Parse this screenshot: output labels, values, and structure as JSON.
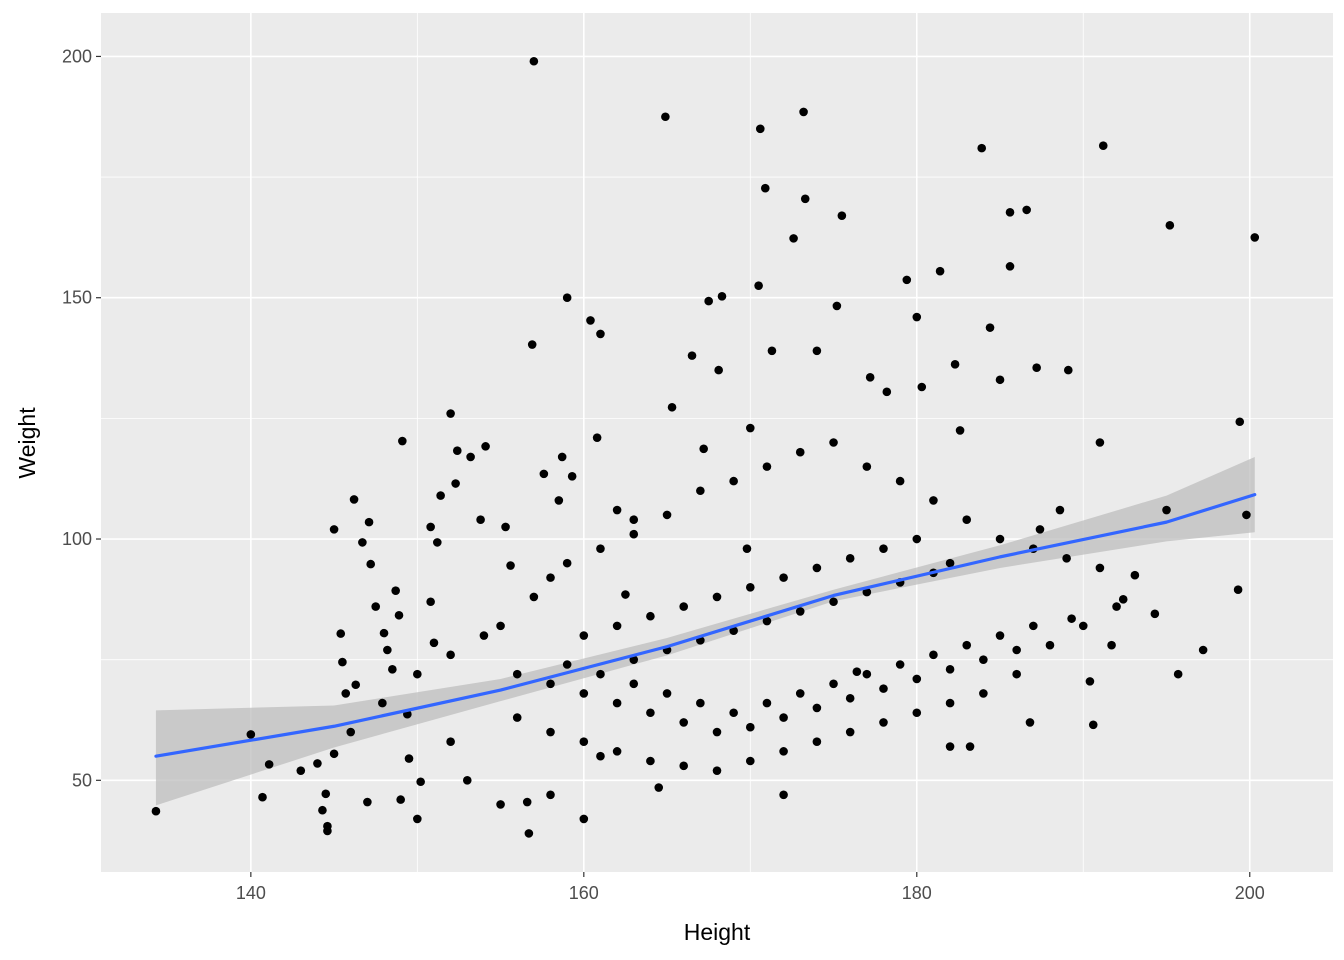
{
  "chart_data": {
    "type": "scatter",
    "xlabel": "Height",
    "ylabel": "Weight",
    "xlim": [
      131,
      205
    ],
    "ylim": [
      31,
      209
    ],
    "xticks": [
      140,
      160,
      180,
      200
    ],
    "xtick_labels": [
      "140",
      "160",
      "180",
      "200"
    ],
    "yticks": [
      50,
      100,
      150,
      200
    ],
    "ytick_labels": [
      "50",
      "100",
      "150",
      "200"
    ],
    "grid": true,
    "panel_background": "#ebebeb",
    "grid_color": "#ffffff",
    "point_color": "#000000",
    "fit_line_color": "#3366ff",
    "ribbon_color": "#bdbdbd",
    "series": [
      {
        "type": "scatter",
        "points": [
          [
            134.3,
            43.6
          ],
          [
            140,
            59.5
          ],
          [
            140.7,
            46.5
          ],
          [
            141.1,
            53.3
          ],
          [
            143,
            52
          ],
          [
            144,
            53.5
          ],
          [
            144.3,
            43.8
          ],
          [
            144.5,
            47.2
          ],
          [
            144.6,
            40.5
          ],
          [
            144.6,
            39.5
          ],
          [
            145,
            55.5
          ],
          [
            145,
            102
          ],
          [
            145.4,
            80.4
          ],
          [
            145.5,
            74.5
          ],
          [
            145.7,
            68
          ],
          [
            146.3,
            69.8
          ],
          [
            146.2,
            108.2
          ],
          [
            146.7,
            99.3
          ],
          [
            147.2,
            94.8
          ],
          [
            147.1,
            103.5
          ],
          [
            147.5,
            86
          ],
          [
            147.9,
            66
          ],
          [
            148,
            80.5
          ],
          [
            148.5,
            73
          ],
          [
            148.2,
            77
          ],
          [
            148.7,
            89.3
          ],
          [
            148.9,
            84.2
          ],
          [
            149.1,
            120.3
          ],
          [
            149.4,
            63.7
          ],
          [
            149.5,
            54.5
          ],
          [
            150.2,
            49.7
          ],
          [
            150.8,
            87
          ],
          [
            150.8,
            102.5
          ],
          [
            151.2,
            99.3
          ],
          [
            151,
            78.5
          ],
          [
            151.4,
            109
          ],
          [
            152,
            126
          ],
          [
            152.4,
            118.3
          ],
          [
            152.3,
            111.5
          ],
          [
            153.2,
            117
          ],
          [
            153.8,
            104
          ],
          [
            154.1,
            119.2
          ],
          [
            155.3,
            102.5
          ],
          [
            155.6,
            94.5
          ],
          [
            156.6,
            45.5
          ],
          [
            156.7,
            39
          ],
          [
            156.9,
            140.3
          ],
          [
            157,
            199
          ],
          [
            157.6,
            113.5
          ],
          [
            158.5,
            108
          ],
          [
            158.7,
            117
          ],
          [
            159,
            150
          ],
          [
            159.3,
            113
          ],
          [
            160.4,
            145.3
          ],
          [
            160.8,
            121
          ],
          [
            161,
            142.5
          ],
          [
            162,
            106
          ],
          [
            162.5,
            88.5
          ],
          [
            163,
            104
          ],
          [
            164.5,
            48.5
          ],
          [
            164.9,
            187.5
          ],
          [
            165.3,
            127.3
          ],
          [
            166.5,
            138
          ],
          [
            167.2,
            118.7
          ],
          [
            167.5,
            149.3
          ],
          [
            168.1,
            135
          ],
          [
            168.3,
            150.3
          ],
          [
            169.8,
            98
          ],
          [
            170,
            123
          ],
          [
            170.5,
            152.5
          ],
          [
            170.6,
            185
          ],
          [
            170.9,
            172.7
          ],
          [
            171.3,
            139
          ],
          [
            172,
            47
          ],
          [
            172.6,
            162.3
          ],
          [
            173.2,
            188.5
          ],
          [
            173.3,
            170.5
          ],
          [
            174,
            139
          ],
          [
            175.5,
            167
          ],
          [
            175.2,
            148.3
          ],
          [
            176.4,
            72.5
          ],
          [
            177.2,
            133.5
          ],
          [
            178.2,
            130.5
          ],
          [
            179.4,
            153.7
          ],
          [
            180,
            146
          ],
          [
            180.3,
            131.5
          ],
          [
            181.4,
            155.5
          ],
          [
            182,
            57
          ],
          [
            182.3,
            136.2
          ],
          [
            182.6,
            122.5
          ],
          [
            183.2,
            57
          ],
          [
            183.9,
            181
          ],
          [
            184.4,
            143.8
          ],
          [
            185,
            133
          ],
          [
            185.6,
            156.5
          ],
          [
            185.6,
            167.7
          ],
          [
            186.6,
            168.2
          ],
          [
            186.8,
            62
          ],
          [
            187.2,
            135.5
          ],
          [
            187.4,
            102
          ],
          [
            188.6,
            106
          ],
          [
            189.1,
            135
          ],
          [
            189.3,
            83.5
          ],
          [
            190.4,
            70.5
          ],
          [
            190.6,
            61.5
          ],
          [
            191.2,
            181.5
          ],
          [
            191,
            120
          ],
          [
            191.7,
            78
          ],
          [
            192.4,
            87.5
          ],
          [
            193.1,
            92.5
          ],
          [
            194.3,
            84.5
          ],
          [
            195,
            106
          ],
          [
            195.2,
            165
          ],
          [
            195.7,
            72
          ],
          [
            197.2,
            77
          ],
          [
            199.3,
            89.5
          ],
          [
            199.4,
            124.3
          ],
          [
            199.8,
            105
          ],
          [
            200.3,
            162.5
          ],
          [
            146,
            60
          ],
          [
            152,
            58
          ],
          [
            153,
            50
          ],
          [
            155,
            45
          ],
          [
            158,
            47
          ],
          [
            160,
            42
          ],
          [
            161,
            55
          ],
          [
            150,
            42
          ],
          [
            149,
            46
          ],
          [
            147,
            45.5
          ],
          [
            155,
            82
          ],
          [
            157,
            88
          ],
          [
            158,
            92
          ],
          [
            159,
            95
          ],
          [
            161,
            98
          ],
          [
            163,
            101
          ],
          [
            165,
            105
          ],
          [
            167,
            110
          ],
          [
            169,
            112
          ],
          [
            171,
            115
          ],
          [
            173,
            118
          ],
          [
            175,
            120
          ],
          [
            177,
            115
          ],
          [
            179,
            112
          ],
          [
            181,
            108
          ],
          [
            183,
            104
          ],
          [
            185,
            100
          ],
          [
            187,
            98
          ],
          [
            189,
            96
          ],
          [
            191,
            94
          ],
          [
            156,
            63
          ],
          [
            158,
            60
          ],
          [
            160,
            58
          ],
          [
            162,
            56
          ],
          [
            164,
            54
          ],
          [
            166,
            53
          ],
          [
            168,
            52
          ],
          [
            170,
            54
          ],
          [
            172,
            56
          ],
          [
            174,
            58
          ],
          [
            176,
            60
          ],
          [
            178,
            62
          ],
          [
            180,
            64
          ],
          [
            182,
            66
          ],
          [
            184,
            68
          ],
          [
            186,
            72
          ],
          [
            188,
            78
          ],
          [
            190,
            82
          ],
          [
            192,
            86
          ],
          [
            150,
            72
          ],
          [
            152,
            76
          ],
          [
            154,
            80
          ],
          [
            156,
            72
          ],
          [
            158,
            70
          ],
          [
            160,
            68
          ],
          [
            162,
            66
          ],
          [
            164,
            64
          ],
          [
            166,
            62
          ],
          [
            168,
            60
          ],
          [
            170,
            61
          ],
          [
            172,
            63
          ],
          [
            174,
            65
          ],
          [
            176,
            67
          ],
          [
            178,
            69
          ],
          [
            180,
            71
          ],
          [
            182,
            73
          ],
          [
            184,
            75
          ],
          [
            186,
            77
          ],
          [
            160,
            80
          ],
          [
            162,
            82
          ],
          [
            164,
            84
          ],
          [
            166,
            86
          ],
          [
            168,
            88
          ],
          [
            170,
            90
          ],
          [
            172,
            92
          ],
          [
            174,
            94
          ],
          [
            176,
            96
          ],
          [
            178,
            98
          ],
          [
            180,
            100
          ],
          [
            182,
            95
          ],
          [
            163,
            75
          ],
          [
            165,
            77
          ],
          [
            167,
            79
          ],
          [
            169,
            81
          ],
          [
            171,
            83
          ],
          [
            173,
            85
          ],
          [
            175,
            87
          ],
          [
            177,
            89
          ],
          [
            179,
            91
          ],
          [
            181,
            93
          ],
          [
            159,
            74
          ],
          [
            161,
            72
          ],
          [
            163,
            70
          ],
          [
            165,
            68
          ],
          [
            167,
            66
          ],
          [
            169,
            64
          ],
          [
            171,
            66
          ],
          [
            173,
            68
          ],
          [
            175,
            70
          ],
          [
            177,
            72
          ],
          [
            179,
            74
          ],
          [
            181,
            76
          ],
          [
            183,
            78
          ],
          [
            185,
            80
          ],
          [
            187,
            82
          ]
        ]
      },
      {
        "type": "line",
        "name": "",
        "points": [
          [
            134.3,
            55
          ],
          [
            145,
            61.2
          ],
          [
            155,
            68.7
          ],
          [
            165,
            77.7
          ],
          [
            175,
            88.3
          ],
          [
            185,
            96.3
          ],
          [
            195,
            103.5
          ],
          [
            200.3,
            109.2
          ]
        ]
      },
      {
        "type": "ribbon",
        "name": "",
        "upper": [
          [
            134.3,
            64.5
          ],
          [
            145,
            65.5
          ],
          [
            155,
            71
          ],
          [
            165,
            79.5
          ],
          [
            175,
            89.5
          ],
          [
            185,
            98.7
          ],
          [
            195,
            109
          ],
          [
            200.3,
            117
          ]
        ],
        "lower": [
          [
            134.3,
            44.8
          ],
          [
            145,
            56.8
          ],
          [
            155,
            66.4
          ],
          [
            165,
            75.9
          ],
          [
            175,
            87.1
          ],
          [
            185,
            94
          ],
          [
            195,
            99.5
          ],
          [
            200.3,
            101.4
          ]
        ]
      }
    ]
  }
}
